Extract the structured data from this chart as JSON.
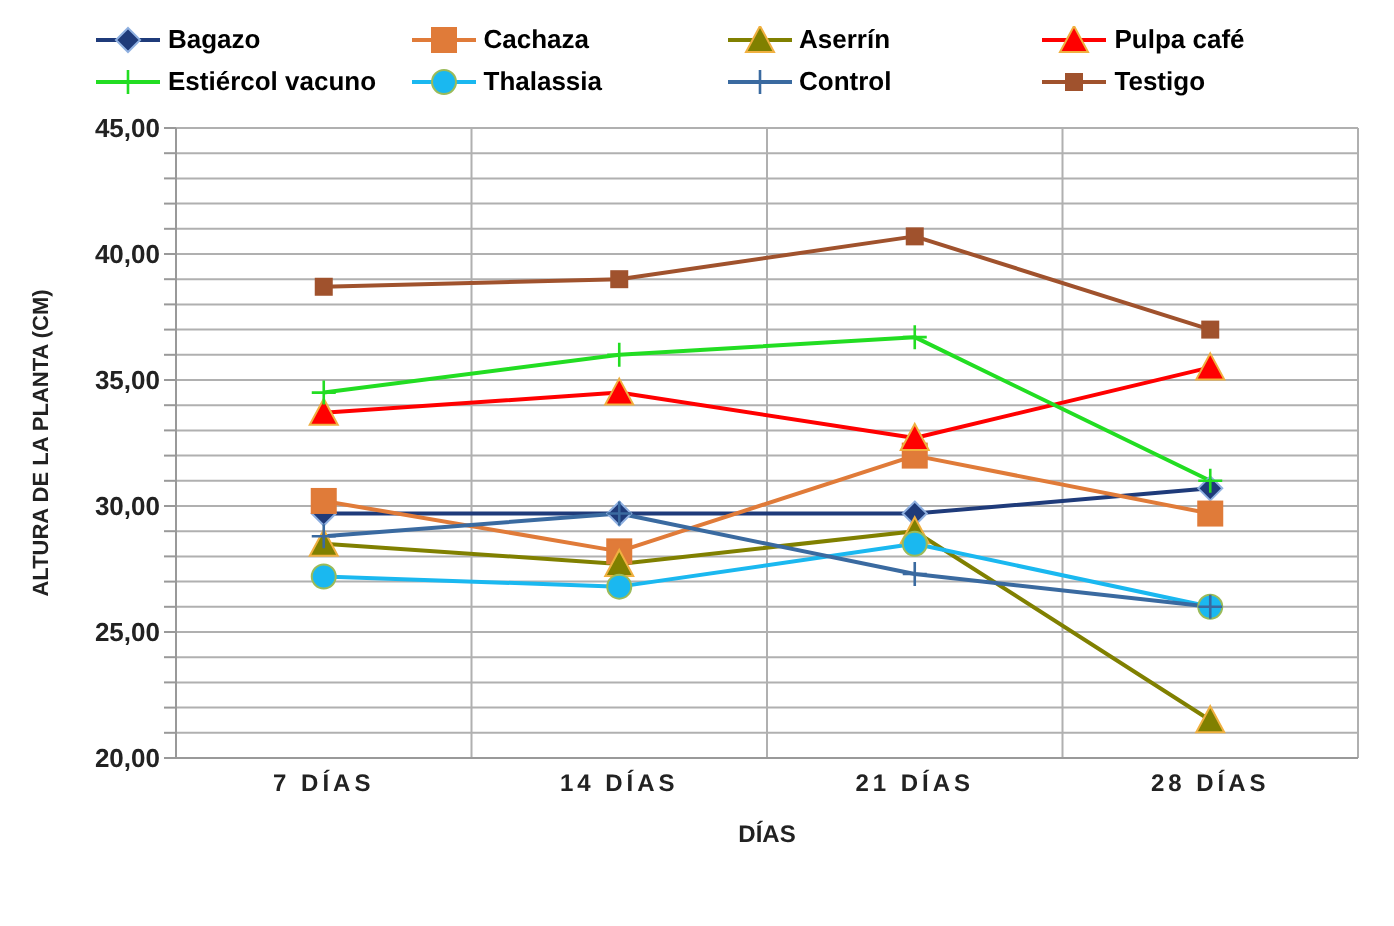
{
  "chart_data": {
    "type": "line",
    "xlabel": "DÍAS",
    "ylabel": "ALTURA DE LA PLANTA (CM)",
    "categories": [
      "7 DÍAS",
      "14 DÍAS",
      "21 DÍAS",
      "28 DÍAS"
    ],
    "ylim": [
      20,
      45
    ],
    "yticks": [
      {
        "value": 20,
        "label": "20,00"
      },
      {
        "value": 21,
        "label": null
      },
      {
        "value": 22,
        "label": null
      },
      {
        "value": 23,
        "label": null
      },
      {
        "value": 24,
        "label": null
      },
      {
        "value": 25,
        "label": "25,00"
      },
      {
        "value": 26,
        "label": null
      },
      {
        "value": 27,
        "label": null
      },
      {
        "value": 28,
        "label": null
      },
      {
        "value": 29,
        "label": null
      },
      {
        "value": 30,
        "label": "30,00"
      },
      {
        "value": 31,
        "label": null
      },
      {
        "value": 32,
        "label": null
      },
      {
        "value": 33,
        "label": null
      },
      {
        "value": 34,
        "label": null
      },
      {
        "value": 35,
        "label": "35,00"
      },
      {
        "value": 36,
        "label": null
      },
      {
        "value": 37,
        "label": null
      },
      {
        "value": 38,
        "label": null
      },
      {
        "value": 39,
        "label": null
      },
      {
        "value": 40,
        "label": "40,00"
      },
      {
        "value": 41,
        "label": null
      },
      {
        "value": 42,
        "label": null
      },
      {
        "value": 43,
        "label": null
      },
      {
        "value": 44,
        "label": null
      },
      {
        "value": 45,
        "label": "45,00"
      }
    ],
    "grid": true,
    "legend": "top",
    "series": [
      {
        "name": "Bagazo",
        "color": "#1f3b7a",
        "marker": "diamond",
        "values": [
          29.7,
          29.7,
          29.7,
          30.7
        ]
      },
      {
        "name": "Cachaza",
        "color": "#e07b39",
        "marker": "square",
        "values": [
          30.2,
          28.2,
          32.0,
          29.7
        ]
      },
      {
        "name": "Aserrín",
        "color": "#808000",
        "marker": "triangle",
        "values": [
          28.5,
          27.7,
          29.0,
          21.5
        ]
      },
      {
        "name": "Pulpa café",
        "color": "#ff0000",
        "marker": "triangle",
        "values": [
          33.7,
          34.5,
          32.7,
          35.5
        ]
      },
      {
        "name": "Estiércol vacuno",
        "color": "#22dd22",
        "marker": "cross",
        "values": [
          34.5,
          36.0,
          36.7,
          31.0
        ]
      },
      {
        "name": "Thalassia",
        "color": "#1ab8f0",
        "marker": "circle",
        "values": [
          27.2,
          26.8,
          28.5,
          26.0
        ]
      },
      {
        "name": "Control",
        "color": "#3a6aa0",
        "marker": "cross",
        "values": [
          28.8,
          29.7,
          27.3,
          26.0
        ]
      },
      {
        "name": "Testigo",
        "color": "#a0522d",
        "marker": "square",
        "values": [
          38.7,
          39.0,
          40.7,
          37.0
        ]
      }
    ]
  }
}
